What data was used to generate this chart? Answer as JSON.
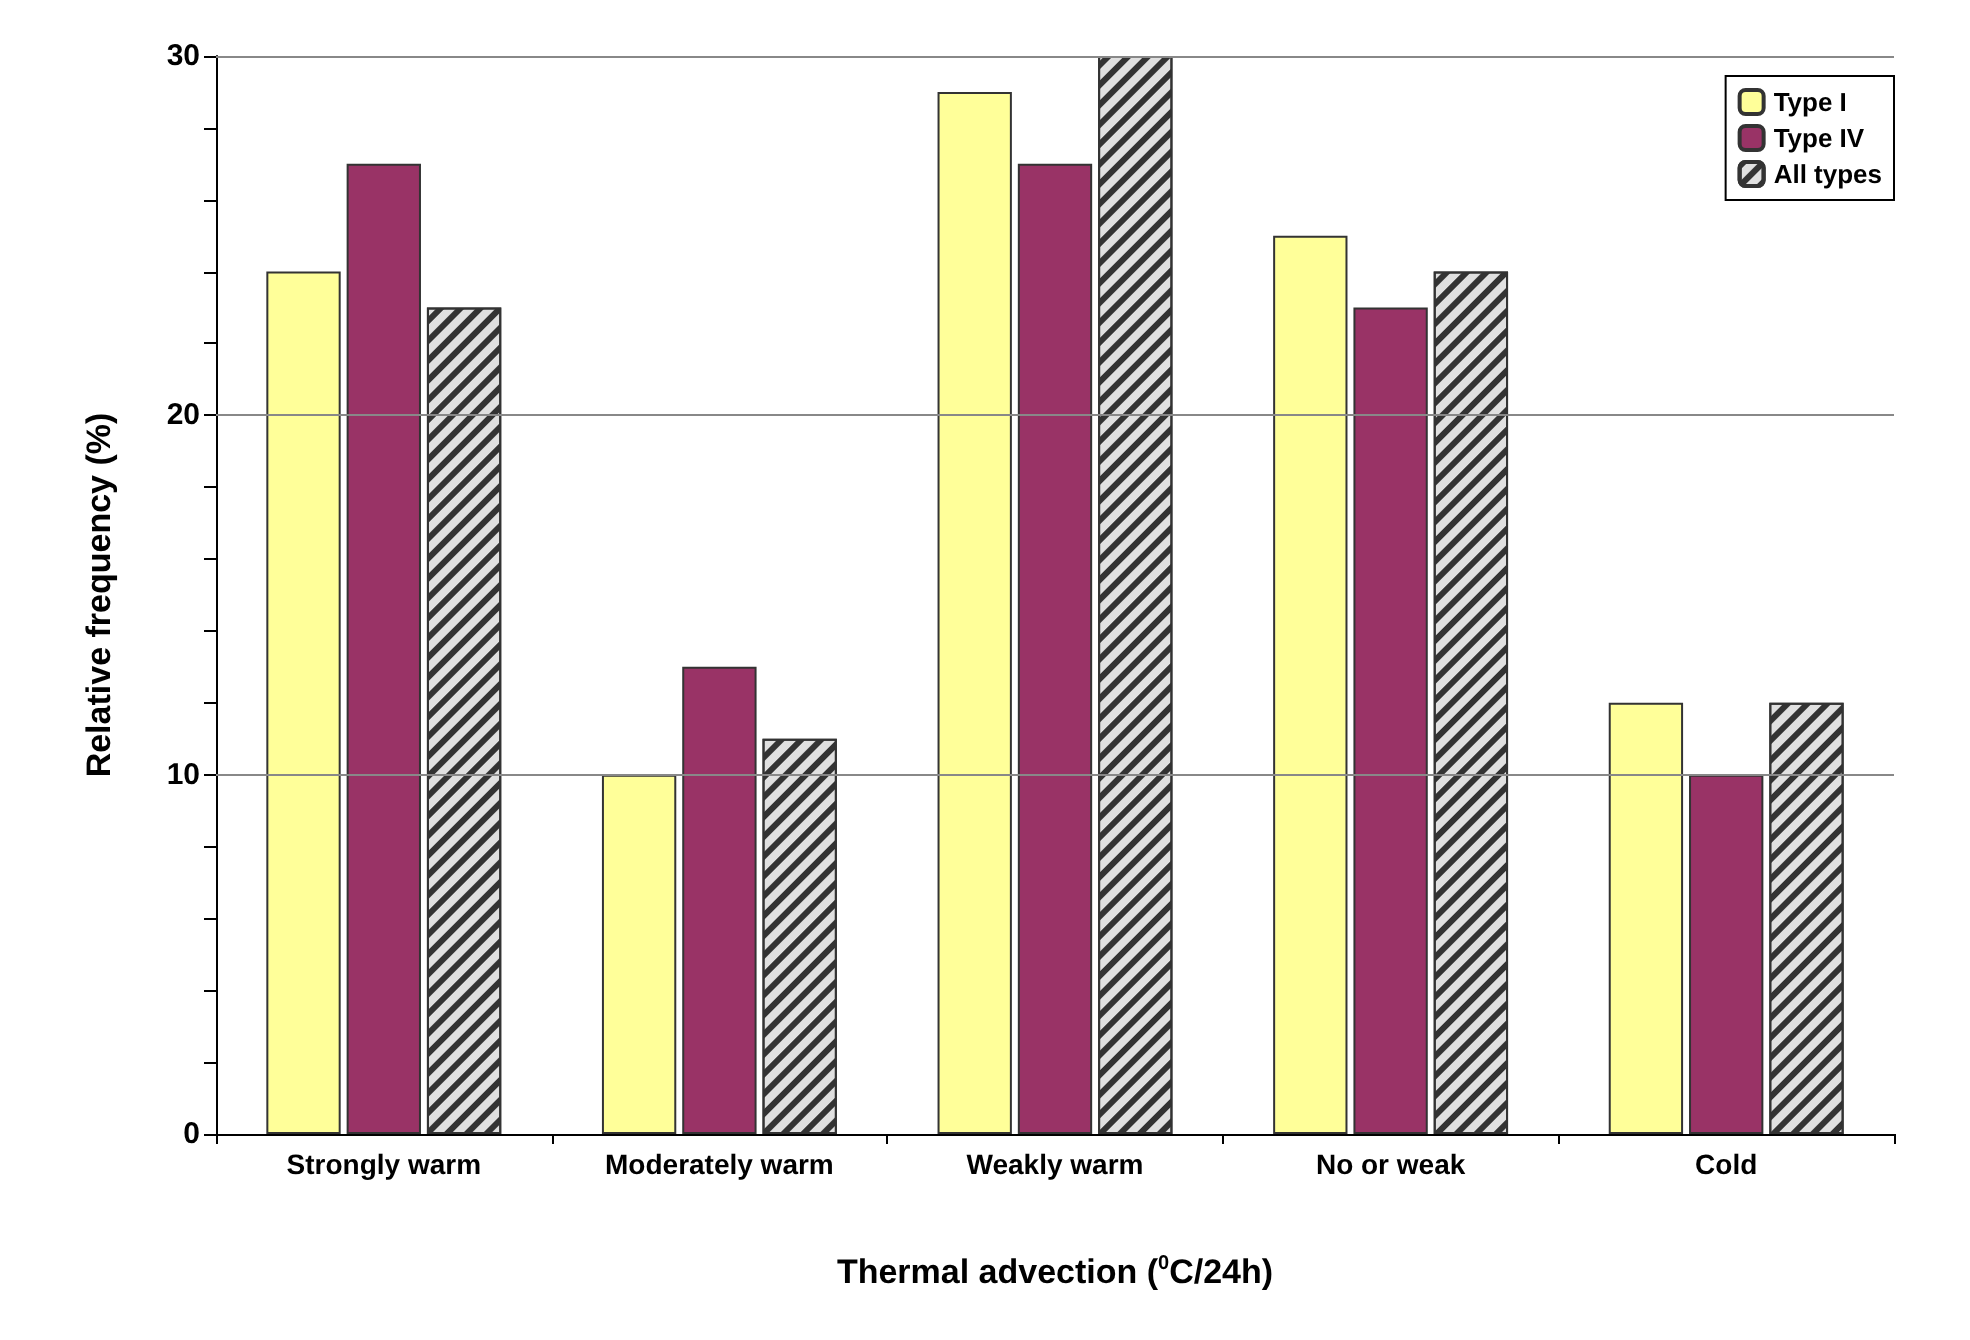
{
  "chart_data": {
    "type": "bar",
    "xlabel": "Thermal advection ($^{0}$C/24h)",
    "ylabel": "Relative frequency (%)",
    "categories": [
      "Strongly warm",
      "Moderately warm",
      "Weakly warm",
      "No or weak",
      "Cold"
    ],
    "series": [
      {
        "name": "Type I",
        "color": "#ffff99",
        "values": [
          24,
          10,
          29,
          25,
          12
        ]
      },
      {
        "name": "Type IV",
        "color": "#993366",
        "values": [
          27,
          13,
          27,
          23,
          10
        ]
      },
      {
        "name": "All types",
        "color": "#e0e0e0",
        "values": [
          23,
          11,
          30,
          24,
          12
        ]
      }
    ],
    "ylim": [
      0,
      30
    ],
    "yticks": [
      0,
      {
        "value": 2,
        "label": null
      },
      {
        "value": 4,
        "label": null
      },
      {
        "value": 6,
        "label": null
      },
      {
        "value": 8,
        "label": null
      },
      10,
      {
        "value": 12,
        "label": null
      },
      {
        "value": 14,
        "label": null
      },
      {
        "value": 16,
        "label": null
      },
      {
        "value": 18,
        "label": null
      },
      20,
      {
        "value": 22,
        "label": null
      },
      {
        "value": 24,
        "label": null
      },
      {
        "value": 26,
        "label": null
      },
      {
        "value": 28,
        "label": null
      },
      30
    ],
    "grid": "y",
    "legend": "top right"
  }
}
